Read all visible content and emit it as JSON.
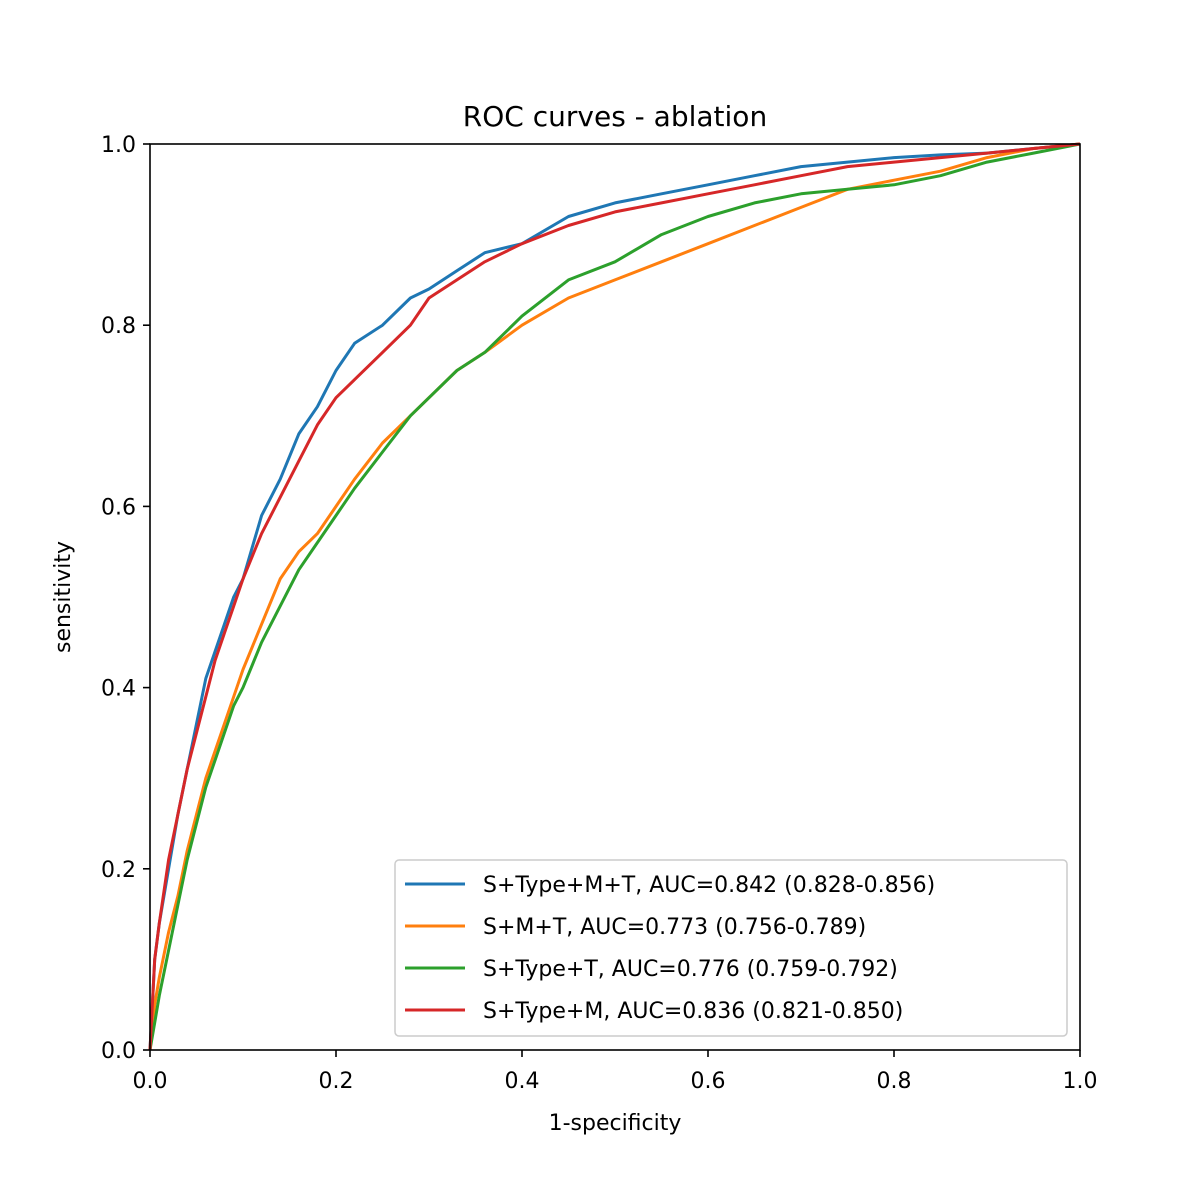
{
  "chart_data": {
    "type": "line",
    "title": "ROC curves - ablation",
    "xlabel": "1-specificity",
    "ylabel": "sensitivity",
    "xlim": [
      0.0,
      1.0
    ],
    "ylim": [
      0.0,
      1.0
    ],
    "xticks": [
      "0.0",
      "0.2",
      "0.4",
      "0.6",
      "0.8",
      "1.0"
    ],
    "yticks": [
      "0.0",
      "0.2",
      "0.4",
      "0.6",
      "0.8",
      "1.0"
    ],
    "grid": false,
    "legend_position": "lower-right",
    "series": [
      {
        "name": "S+Type+M+T, AUC=0.842 (0.828-0.856)",
        "color": "#1f77b4",
        "x": [
          0,
          0.005,
          0.01,
          0.02,
          0.03,
          0.04,
          0.05,
          0.06,
          0.07,
          0.08,
          0.09,
          0.1,
          0.12,
          0.14,
          0.16,
          0.18,
          0.2,
          0.22,
          0.25,
          0.28,
          0.3,
          0.33,
          0.36,
          0.4,
          0.45,
          0.5,
          0.55,
          0.6,
          0.65,
          0.7,
          0.75,
          0.8,
          0.85,
          0.9,
          0.95,
          1.0
        ],
        "y": [
          0,
          0.1,
          0.14,
          0.2,
          0.26,
          0.31,
          0.36,
          0.41,
          0.44,
          0.47,
          0.5,
          0.52,
          0.59,
          0.63,
          0.68,
          0.71,
          0.75,
          0.78,
          0.8,
          0.83,
          0.84,
          0.86,
          0.88,
          0.89,
          0.92,
          0.935,
          0.945,
          0.955,
          0.965,
          0.975,
          0.98,
          0.985,
          0.988,
          0.99,
          0.995,
          1.0
        ]
      },
      {
        "name": "S+M+T, AUC=0.773 (0.756-0.789)",
        "color": "#ff7f0e",
        "x": [
          0,
          0.005,
          0.01,
          0.02,
          0.03,
          0.04,
          0.05,
          0.06,
          0.07,
          0.08,
          0.09,
          0.1,
          0.12,
          0.14,
          0.16,
          0.18,
          0.2,
          0.22,
          0.25,
          0.28,
          0.3,
          0.33,
          0.36,
          0.4,
          0.45,
          0.5,
          0.55,
          0.6,
          0.65,
          0.7,
          0.75,
          0.8,
          0.85,
          0.9,
          0.95,
          1.0
        ],
        "y": [
          0,
          0.05,
          0.08,
          0.13,
          0.17,
          0.22,
          0.26,
          0.3,
          0.33,
          0.36,
          0.39,
          0.42,
          0.47,
          0.52,
          0.55,
          0.57,
          0.6,
          0.63,
          0.67,
          0.7,
          0.72,
          0.75,
          0.77,
          0.8,
          0.83,
          0.85,
          0.87,
          0.89,
          0.91,
          0.93,
          0.95,
          0.96,
          0.97,
          0.985,
          0.995,
          1.0
        ]
      },
      {
        "name": "S+Type+T, AUC=0.776 (0.759-0.792)",
        "color": "#2ca02c",
        "x": [
          0,
          0.005,
          0.01,
          0.02,
          0.03,
          0.04,
          0.05,
          0.06,
          0.07,
          0.08,
          0.09,
          0.1,
          0.12,
          0.14,
          0.16,
          0.18,
          0.2,
          0.22,
          0.25,
          0.28,
          0.3,
          0.33,
          0.36,
          0.4,
          0.45,
          0.5,
          0.55,
          0.6,
          0.65,
          0.7,
          0.75,
          0.8,
          0.85,
          0.9,
          0.95,
          1.0
        ],
        "y": [
          0,
          0.03,
          0.06,
          0.11,
          0.16,
          0.21,
          0.25,
          0.29,
          0.32,
          0.35,
          0.38,
          0.4,
          0.45,
          0.49,
          0.53,
          0.56,
          0.59,
          0.62,
          0.66,
          0.7,
          0.72,
          0.75,
          0.77,
          0.81,
          0.85,
          0.87,
          0.9,
          0.92,
          0.935,
          0.945,
          0.95,
          0.955,
          0.965,
          0.98,
          0.99,
          1.0
        ]
      },
      {
        "name": "S+Type+M, AUC=0.836 (0.821-0.850)",
        "color": "#d62728",
        "x": [
          0,
          0.005,
          0.01,
          0.02,
          0.03,
          0.04,
          0.05,
          0.06,
          0.07,
          0.08,
          0.09,
          0.1,
          0.12,
          0.14,
          0.16,
          0.18,
          0.2,
          0.22,
          0.25,
          0.28,
          0.3,
          0.33,
          0.36,
          0.4,
          0.45,
          0.5,
          0.55,
          0.6,
          0.65,
          0.7,
          0.75,
          0.8,
          0.85,
          0.9,
          0.95,
          1.0
        ],
        "y": [
          0,
          0.1,
          0.14,
          0.21,
          0.26,
          0.31,
          0.35,
          0.39,
          0.43,
          0.46,
          0.49,
          0.52,
          0.57,
          0.61,
          0.65,
          0.69,
          0.72,
          0.74,
          0.77,
          0.8,
          0.83,
          0.85,
          0.87,
          0.89,
          0.91,
          0.925,
          0.935,
          0.945,
          0.955,
          0.965,
          0.975,
          0.98,
          0.985,
          0.99,
          0.995,
          1.0
        ]
      }
    ]
  }
}
